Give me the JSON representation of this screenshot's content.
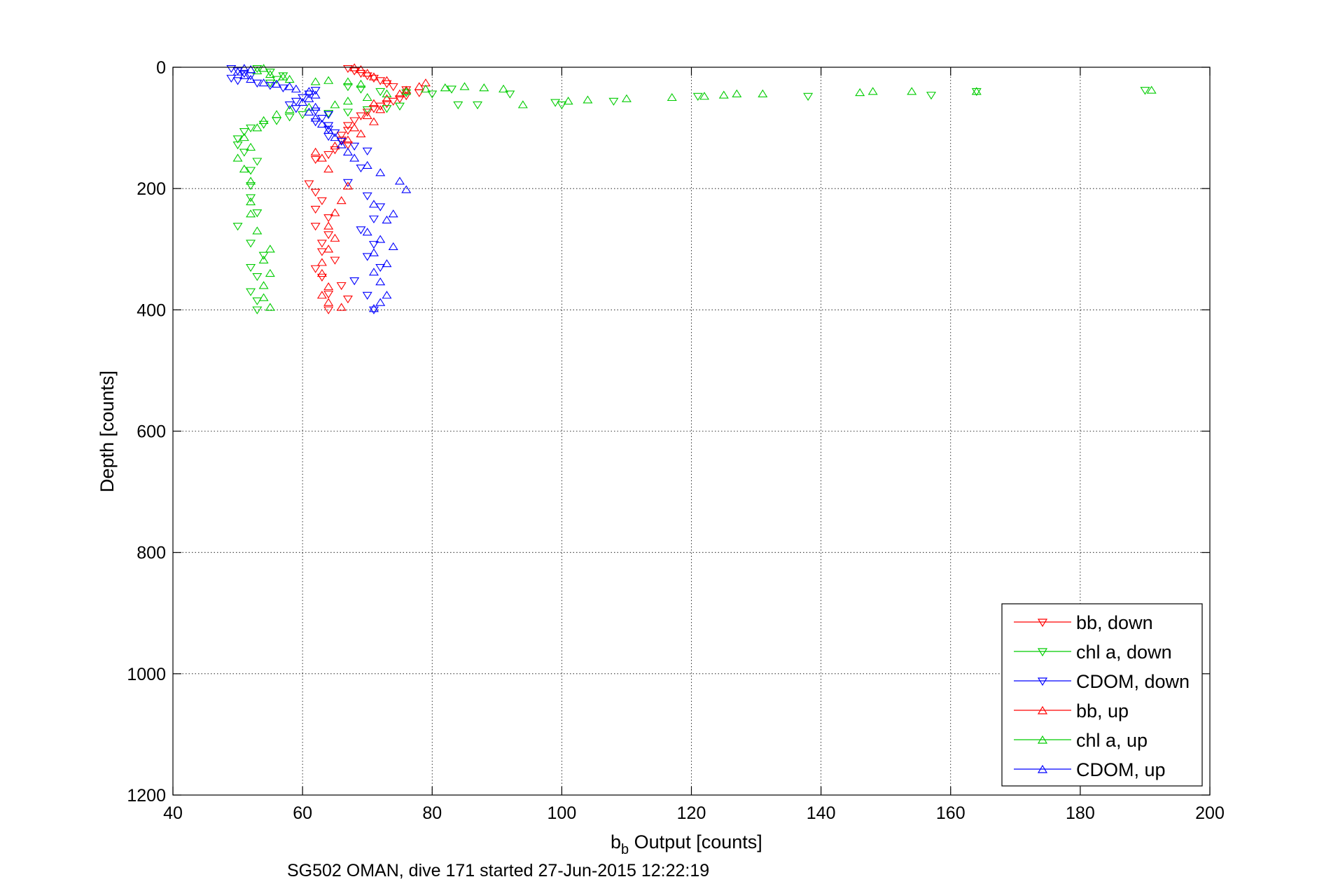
{
  "chart_data": {
    "type": "scatter",
    "xlabel_main": "b",
    "xlabel_sub": "b",
    "xlabel_rest": " Output [counts]",
    "ylabel": "Depth [counts]",
    "caption": "SG502 OMAN, dive 171 started 27-Jun-2015 12:22:19",
    "xlim": [
      40,
      200
    ],
    "ylim": [
      0,
      1200
    ],
    "y_reversed": true,
    "grid": true,
    "legend_placement": "bottom-right",
    "x_ticks": [
      "40",
      "60",
      "80",
      "100",
      "120",
      "140",
      "160",
      "180",
      "200"
    ],
    "y_ticks": [
      "0",
      "200",
      "400",
      "600",
      "800",
      "1000",
      "1200"
    ],
    "series": [
      {
        "name": "bb, down",
        "marker": "triangle-down",
        "color": "#ff0000",
        "points": [
          [
            67,
            2
          ],
          [
            68,
            6
          ],
          [
            69,
            10
          ],
          [
            70,
            14
          ],
          [
            71,
            18
          ],
          [
            72,
            22
          ],
          [
            73,
            27
          ],
          [
            74,
            32
          ],
          [
            76,
            37
          ],
          [
            78,
            42
          ],
          [
            76,
            47
          ],
          [
            75,
            52
          ],
          [
            74,
            56
          ],
          [
            73,
            60
          ],
          [
            72,
            64
          ],
          [
            71,
            68
          ],
          [
            70,
            74
          ],
          [
            69,
            80
          ],
          [
            68,
            88
          ],
          [
            67,
            96
          ],
          [
            67,
            104
          ],
          [
            66,
            112
          ],
          [
            66,
            120
          ],
          [
            67,
            128
          ],
          [
            65,
            136
          ],
          [
            64,
            144
          ],
          [
            62,
            152
          ],
          [
            61,
            192
          ],
          [
            62,
            206
          ],
          [
            63,
            220
          ],
          [
            62,
            234
          ],
          [
            64,
            248
          ],
          [
            62,
            262
          ],
          [
            64,
            276
          ],
          [
            63,
            290
          ],
          [
            63,
            304
          ],
          [
            65,
            318
          ],
          [
            62,
            332
          ],
          [
            63,
            346
          ],
          [
            66,
            360
          ],
          [
            64,
            374
          ],
          [
            67,
            382
          ],
          [
            64,
            400
          ]
        ]
      },
      {
        "name": "chl a, down",
        "marker": "triangle-down",
        "color": "#00cc00",
        "points": [
          [
            53,
            2
          ],
          [
            55,
            8
          ],
          [
            57,
            14
          ],
          [
            56,
            20
          ],
          [
            55,
            26
          ],
          [
            67,
            32
          ],
          [
            69,
            36
          ],
          [
            72,
            40
          ],
          [
            76,
            42
          ],
          [
            80,
            44
          ],
          [
            83,
            36
          ],
          [
            92,
            44
          ],
          [
            99,
            58
          ],
          [
            100,
            62
          ],
          [
            108,
            56
          ],
          [
            121,
            48
          ],
          [
            138,
            48
          ],
          [
            157,
            46
          ],
          [
            164,
            40
          ],
          [
            190,
            38
          ],
          [
            84,
            62
          ],
          [
            87,
            62
          ],
          [
            75,
            64
          ],
          [
            73,
            68
          ],
          [
            70,
            70
          ],
          [
            67,
            74
          ],
          [
            64,
            76
          ],
          [
            60,
            78
          ],
          [
            58,
            82
          ],
          [
            56,
            88
          ],
          [
            54,
            94
          ],
          [
            52,
            100
          ],
          [
            51,
            106
          ],
          [
            50,
            118
          ],
          [
            50,
            128
          ],
          [
            51,
            140
          ],
          [
            53,
            155
          ],
          [
            52,
            170
          ],
          [
            52,
            195
          ],
          [
            52,
            215
          ],
          [
            53,
            240
          ],
          [
            50,
            262
          ],
          [
            52,
            290
          ],
          [
            54,
            310
          ],
          [
            52,
            330
          ],
          [
            53,
            345
          ],
          [
            52,
            370
          ],
          [
            53,
            385
          ],
          [
            53,
            400
          ]
        ]
      },
      {
        "name": "CDOM, down",
        "marker": "triangle-down",
        "color": "#0000ff",
        "points": [
          [
            49,
            2
          ],
          [
            50,
            6
          ],
          [
            51,
            10
          ],
          [
            52,
            14
          ],
          [
            49,
            18
          ],
          [
            50,
            22
          ],
          [
            53,
            26
          ],
          [
            55,
            30
          ],
          [
            57,
            34
          ],
          [
            62,
            38
          ],
          [
            61,
            44
          ],
          [
            60,
            50
          ],
          [
            59,
            56
          ],
          [
            58,
            62
          ],
          [
            59,
            68
          ],
          [
            62,
            72
          ],
          [
            64,
            78
          ],
          [
            63,
            84
          ],
          [
            62,
            90
          ],
          [
            64,
            96
          ],
          [
            64,
            102
          ],
          [
            65,
            108
          ],
          [
            64,
            114
          ],
          [
            66,
            122
          ],
          [
            68,
            130
          ],
          [
            70,
            138
          ],
          [
            69,
            166
          ],
          [
            67,
            190
          ],
          [
            70,
            212
          ],
          [
            72,
            230
          ],
          [
            71,
            250
          ],
          [
            69,
            268
          ],
          [
            71,
            292
          ],
          [
            70,
            312
          ],
          [
            72,
            330
          ],
          [
            68,
            352
          ],
          [
            70,
            376
          ],
          [
            71,
            400
          ]
        ]
      },
      {
        "name": "bb, up",
        "marker": "triangle-up",
        "color": "#ff0000",
        "points": [
          [
            66,
            396
          ],
          [
            64,
            388
          ],
          [
            63,
            376
          ],
          [
            64,
            362
          ],
          [
            63,
            340
          ],
          [
            63,
            322
          ],
          [
            64,
            300
          ],
          [
            65,
            282
          ],
          [
            64,
            262
          ],
          [
            65,
            240
          ],
          [
            66,
            220
          ],
          [
            67,
            196
          ],
          [
            64,
            168
          ],
          [
            63,
            150
          ],
          [
            62,
            140
          ],
          [
            65,
            130
          ],
          [
            67,
            120
          ],
          [
            69,
            110
          ],
          [
            68,
            100
          ],
          [
            71,
            90
          ],
          [
            70,
            80
          ],
          [
            72,
            70
          ],
          [
            71,
            60
          ],
          [
            73,
            52
          ],
          [
            75,
            44
          ],
          [
            76,
            38
          ],
          [
            78,
            32
          ],
          [
            79,
            26
          ],
          [
            73,
            22
          ],
          [
            71,
            16
          ],
          [
            70,
            10
          ],
          [
            69,
            4
          ],
          [
            68,
            1
          ]
        ]
      },
      {
        "name": "chl a, up",
        "marker": "triangle-up",
        "color": "#00cc00",
        "points": [
          [
            55,
            396
          ],
          [
            54,
            380
          ],
          [
            54,
            360
          ],
          [
            55,
            340
          ],
          [
            54,
            318
          ],
          [
            55,
            300
          ],
          [
            53,
            270
          ],
          [
            52,
            242
          ],
          [
            52,
            222
          ],
          [
            52,
            188
          ],
          [
            51,
            168
          ],
          [
            50,
            150
          ],
          [
            52,
            132
          ],
          [
            51,
            116
          ],
          [
            53,
            100
          ],
          [
            54,
            88
          ],
          [
            56,
            78
          ],
          [
            58,
            70
          ],
          [
            61,
            66
          ],
          [
            65,
            62
          ],
          [
            67,
            56
          ],
          [
            70,
            50
          ],
          [
            73,
            44
          ],
          [
            76,
            40
          ],
          [
            79,
            36
          ],
          [
            82,
            34
          ],
          [
            85,
            32
          ],
          [
            88,
            34
          ],
          [
            91,
            36
          ],
          [
            94,
            62
          ],
          [
            101,
            56
          ],
          [
            104,
            54
          ],
          [
            110,
            52
          ],
          [
            117,
            50
          ],
          [
            122,
            48
          ],
          [
            125,
            46
          ],
          [
            127,
            44
          ],
          [
            131,
            44
          ],
          [
            146,
            42
          ],
          [
            148,
            40
          ],
          [
            154,
            40
          ],
          [
            164,
            40
          ],
          [
            191,
            38
          ],
          [
            69,
            28
          ],
          [
            67,
            24
          ],
          [
            64,
            22
          ],
          [
            62,
            24
          ],
          [
            58,
            20
          ],
          [
            57,
            16
          ],
          [
            55,
            12
          ],
          [
            53,
            6
          ],
          [
            54,
            2
          ]
        ]
      },
      {
        "name": "CDOM, up",
        "marker": "triangle-up",
        "color": "#0000ff",
        "points": [
          [
            71,
            398
          ],
          [
            72,
            388
          ],
          [
            73,
            376
          ],
          [
            72,
            354
          ],
          [
            71,
            338
          ],
          [
            73,
            324
          ],
          [
            71,
            306
          ],
          [
            74,
            296
          ],
          [
            72,
            284
          ],
          [
            70,
            272
          ],
          [
            73,
            252
          ],
          [
            74,
            242
          ],
          [
            71,
            226
          ],
          [
            76,
            202
          ],
          [
            75,
            188
          ],
          [
            72,
            174
          ],
          [
            70,
            162
          ],
          [
            68,
            150
          ],
          [
            67,
            140
          ],
          [
            66,
            128
          ],
          [
            65,
            116
          ],
          [
            64,
            104
          ],
          [
            63,
            94
          ],
          [
            62,
            84
          ],
          [
            61,
            74
          ],
          [
            62,
            66
          ],
          [
            60,
            58
          ],
          [
            61,
            52
          ],
          [
            62,
            46
          ],
          [
            61,
            40
          ],
          [
            59,
            36
          ],
          [
            58,
            32
          ],
          [
            56,
            28
          ],
          [
            54,
            26
          ],
          [
            52,
            20
          ],
          [
            51,
            14
          ],
          [
            50,
            8
          ],
          [
            52,
            4
          ],
          [
            51,
            2
          ]
        ]
      }
    ]
  }
}
